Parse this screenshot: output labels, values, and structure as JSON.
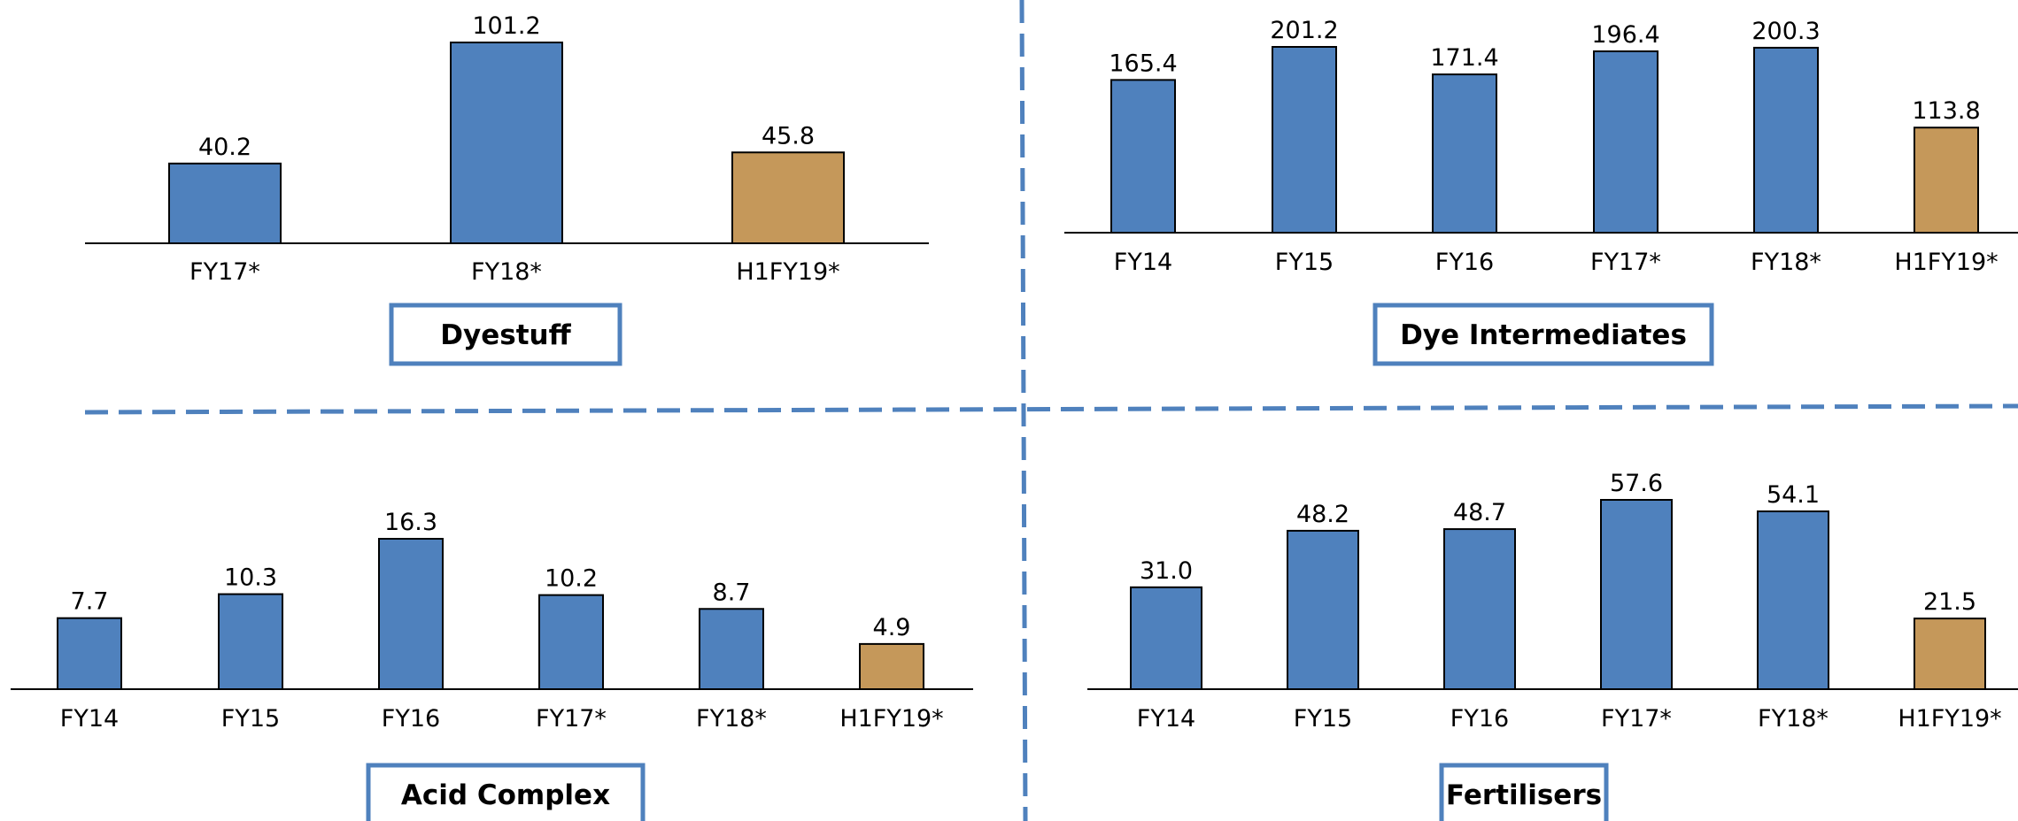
{
  "colors": {
    "bar": "#4f81bd",
    "highlight": "#c5985a",
    "bar_stroke": "#000000",
    "divider": "#4f81bd",
    "caption_border": "#4f81bd"
  },
  "chart_data": [
    {
      "type": "bar",
      "title": "Dyestuff",
      "categories": [
        "FY17*",
        "FY18*",
        "H1FY19*"
      ],
      "values": [
        40.2,
        101.2,
        45.8
      ],
      "value_labels": [
        "40.2",
        "101.2",
        "45.8"
      ],
      "highlight_index": 2,
      "grid": false,
      "legend": "none"
    },
    {
      "type": "bar",
      "title": "Dye Intermediates",
      "categories": [
        "FY14",
        "FY15",
        "FY16",
        "FY17*",
        "FY18*",
        "H1FY19*"
      ],
      "values": [
        165.4,
        201.2,
        171.4,
        196.4,
        200.3,
        113.8
      ],
      "value_labels": [
        "165.4",
        "201.2",
        "171.4",
        "196.4",
        "200.3",
        "113.8"
      ],
      "highlight_index": 5,
      "grid": false,
      "legend": "none"
    },
    {
      "type": "bar",
      "title": "Acid Complex",
      "categories": [
        "FY14",
        "FY15",
        "FY16",
        "FY17*",
        "FY18*",
        "H1FY19*"
      ],
      "values": [
        7.7,
        10.3,
        16.3,
        10.2,
        8.7,
        4.9
      ],
      "value_labels": [
        "7.7",
        "10.3",
        "16.3",
        "10.2",
        "8.7",
        "4.9"
      ],
      "highlight_index": 5,
      "grid": false,
      "legend": "none"
    },
    {
      "type": "bar",
      "title": "Fertilisers",
      "categories": [
        "FY14",
        "FY15",
        "FY16",
        "FY17*",
        "FY18*",
        "H1FY19*"
      ],
      "values": [
        31.0,
        48.2,
        48.7,
        57.6,
        54.1,
        21.5
      ],
      "value_labels": [
        "31.0",
        "48.2",
        "48.7",
        "57.6",
        "54.1",
        "21.5"
      ],
      "highlight_index": 5,
      "grid": false,
      "legend": "none"
    }
  ]
}
